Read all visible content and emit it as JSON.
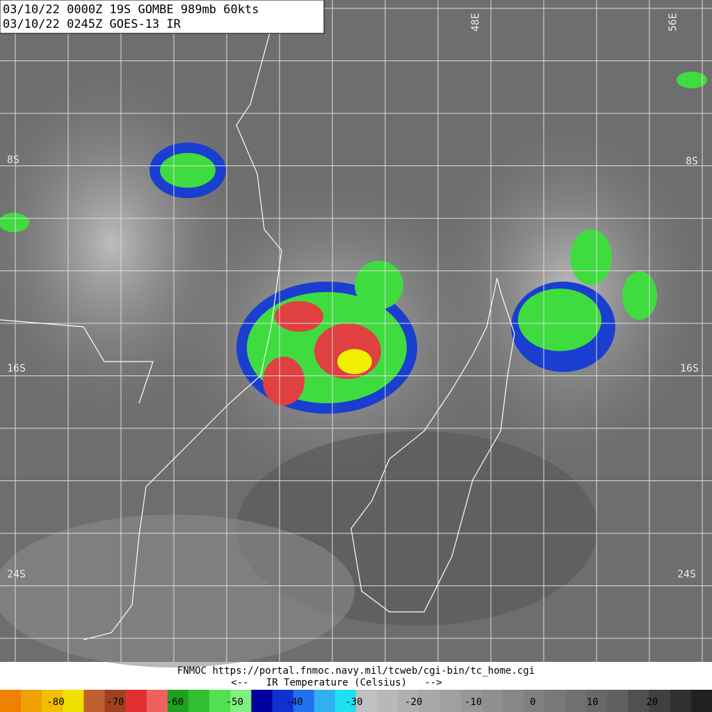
{
  "header": {
    "lines": [
      "03/10/22 0000Z  19S GOMBE 989mb 60kts",
      "03/10/22 0245Z  GOES-13 IR"
    ]
  },
  "grid_labels": {
    "lon": [
      "48E",
      "56E"
    ],
    "lat": [
      "8S",
      "16S",
      "24S"
    ]
  },
  "footer": {
    "credit": "FNMOC https://portal.fnmoc.navy.mil/tcweb/cgi-bin/tc_home.cgi",
    "legend_title": "<--   IR Temperature (Celsius)   -->"
  },
  "colorbar": {
    "labels": [
      -80,
      -70,
      -60,
      -50,
      -40,
      -30,
      -20,
      -10,
      0,
      10,
      20
    ]
  }
}
